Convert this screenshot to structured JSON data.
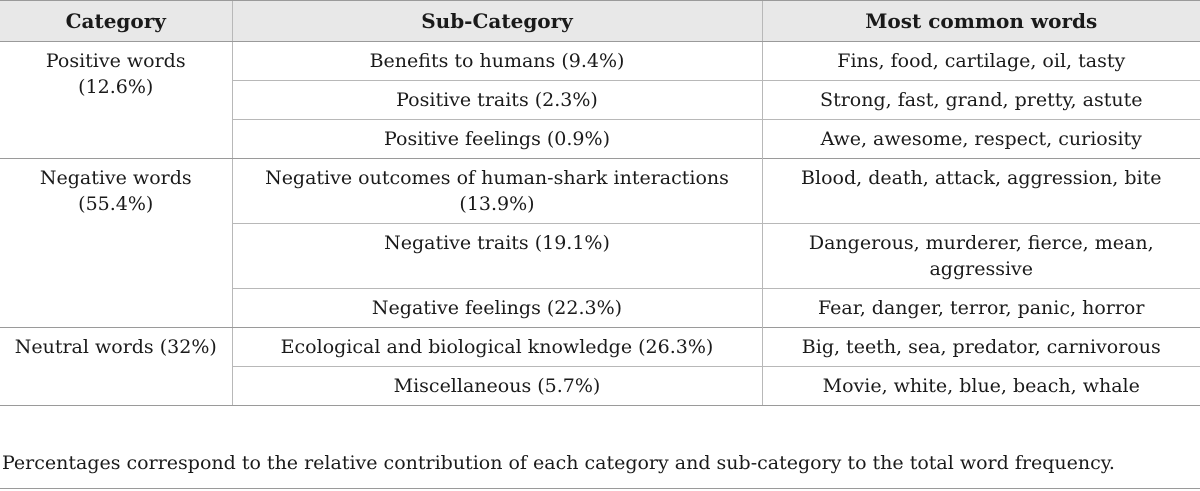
{
  "table": {
    "headers": [
      "Category",
      "Sub-Category",
      "Most common words"
    ],
    "groups": [
      {
        "category": "Positive words (12.6%)",
        "rows": [
          {
            "sub": "Benefits to humans (9.4%)",
            "words": "Fins, food, cartilage, oil, tasty"
          },
          {
            "sub": "Positive traits (2.3%)",
            "words": "Strong, fast, grand, pretty, astute"
          },
          {
            "sub": "Positive feelings (0.9%)",
            "words": "Awe, awesome, respect, curiosity"
          }
        ]
      },
      {
        "category": "Negative words (55.4%)",
        "rows": [
          {
            "sub": "Negative outcomes of human-shark interactions (13.9%)",
            "words": "Blood, death, attack, aggression, bite"
          },
          {
            "sub": "Negative traits (19.1%)",
            "words": "Dangerous, murderer, fierce, mean, aggressive"
          },
          {
            "sub": "Negative feelings (22.3%)",
            "words": "Fear, danger, terror, panic, horror"
          }
        ]
      },
      {
        "category": "Neutral words (32%)",
        "rows": [
          {
            "sub": "Ecological and biological knowledge (26.3%)",
            "words": "Big, teeth, sea, predator, carnivorous"
          },
          {
            "sub": "Miscellaneous (5.7%)",
            "words": "Movie, white, blue, beach, whale"
          }
        ]
      }
    ]
  },
  "footnote": "Percentages correspond to the relative contribution of each category and sub-category to the total word frequency."
}
